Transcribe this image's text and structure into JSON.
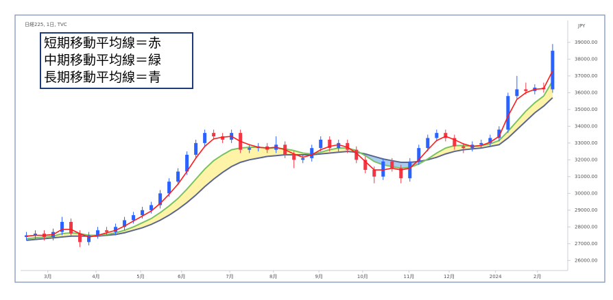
{
  "header": {
    "symbol": "日経225, 1日, TVC",
    "currency": "JPY"
  },
  "legend_box": {
    "lines": [
      "短期移動平均線＝赤",
      "中期移動平均線＝緑",
      "長期移動平均線＝青"
    ]
  },
  "chart_data": {
    "type": "candlestick",
    "up_color": "#2962ff",
    "down_color": "#f23645",
    "band_colors": {
      "above": "#fff3a8",
      "below": "#a9cdf0"
    },
    "xlim": [
      -0.5,
      59.7
    ],
    "xticks": [
      {
        "value": 2.4,
        "label": "3月"
      },
      {
        "value": 7.8,
        "label": "4月"
      },
      {
        "value": 12.8,
        "label": "5月"
      },
      {
        "value": 17.4,
        "label": "6月"
      },
      {
        "value": 22.8,
        "label": "7月"
      },
      {
        "value": 27.7,
        "label": "8月"
      },
      {
        "value": 32.8,
        "label": "9月"
      },
      {
        "value": 37.7,
        "label": "10月"
      },
      {
        "value": 42.9,
        "label": "11月"
      },
      {
        "value": 47.4,
        "label": "12月"
      },
      {
        "value": 52.6,
        "label": "2024"
      },
      {
        "value": 57.3,
        "label": "2月"
      }
    ],
    "ylim": [
      25400,
      40300
    ],
    "yticks": [
      {
        "value": 26000,
        "label": "26000.00"
      },
      {
        "value": 27000,
        "label": "27000.00"
      },
      {
        "value": 28000,
        "label": "28000.00"
      },
      {
        "value": 29000,
        "label": "29000.00"
      },
      {
        "value": 30000,
        "label": "30000.00"
      },
      {
        "value": 31000,
        "label": "31000.00"
      },
      {
        "value": 32000,
        "label": "32000.00"
      },
      {
        "value": 33000,
        "label": "33000.00"
      },
      {
        "value": 34000,
        "label": "34000.00"
      },
      {
        "value": 35000,
        "label": "35000.00"
      },
      {
        "value": 36000,
        "label": "36000.00"
      },
      {
        "value": 37000,
        "label": "37000.00"
      },
      {
        "value": 38000,
        "label": "38000.00"
      },
      {
        "value": 39000,
        "label": "39000.00"
      }
    ],
    "grid": false,
    "candles": {
      "open": [
        27400,
        27500,
        27600,
        27400,
        27700,
        28300,
        27600,
        27100,
        27500,
        27800,
        27700,
        28000,
        28400,
        28700,
        29000,
        29300,
        30000,
        30700,
        31300,
        32300,
        33000,
        33600,
        33400,
        33200,
        33600,
        32600,
        32700,
        32800,
        32600,
        32900,
        32300,
        32000,
        32100,
        32700,
        33200,
        32700,
        33000,
        32600,
        32000,
        31400,
        31000,
        31900,
        31500,
        30900,
        31900,
        32700,
        33300,
        33600,
        33300,
        32800,
        32700,
        32900,
        33000,
        33300,
        33800,
        35800,
        36200,
        36100,
        36300,
        36200
      ],
      "high": [
        27700,
        27800,
        27800,
        27900,
        28600,
        28500,
        27800,
        27700,
        28000,
        28000,
        28200,
        28600,
        28900,
        29200,
        29500,
        30200,
        30900,
        31500,
        32500,
        33200,
        33800,
        33800,
        33600,
        33800,
        33800,
        32900,
        33000,
        33000,
        33400,
        33100,
        32500,
        32300,
        32900,
        33400,
        33400,
        33200,
        33200,
        32800,
        32200,
        31600,
        32100,
        32100,
        31700,
        32100,
        32900,
        33500,
        33800,
        33800,
        33500,
        33000,
        33100,
        33200,
        33500,
        34000,
        36000,
        37000,
        36600,
        36500,
        36600,
        38900
      ],
      "low": [
        27200,
        27300,
        27200,
        27200,
        27500,
        27400,
        26800,
        26900,
        27300,
        27500,
        27500,
        27800,
        28200,
        28500,
        28800,
        29100,
        29800,
        30500,
        31100,
        32100,
        32800,
        33200,
        33000,
        33000,
        32400,
        32400,
        32500,
        32400,
        32400,
        32100,
        31500,
        31800,
        31900,
        32500,
        32500,
        32500,
        32400,
        31800,
        31200,
        30600,
        30800,
        31300,
        30600,
        30700,
        31700,
        32500,
        33100,
        33100,
        32600,
        32400,
        32500,
        32700,
        32800,
        33100,
        33600,
        35600,
        35900,
        35900,
        36000,
        36000
      ],
      "close": [
        27500,
        27600,
        27400,
        27700,
        28300,
        27600,
        27100,
        27500,
        27800,
        27700,
        28000,
        28400,
        28700,
        29000,
        29300,
        30000,
        30700,
        31300,
        32300,
        33000,
        33600,
        33400,
        33200,
        33600,
        32600,
        32700,
        32800,
        32600,
        32900,
        32300,
        32000,
        32100,
        32700,
        33200,
        32700,
        33000,
        32600,
        32000,
        31400,
        31000,
        31900,
        31500,
        30900,
        31900,
        32700,
        33300,
        33600,
        33300,
        32800,
        32700,
        32900,
        33000,
        33300,
        33800,
        35800,
        36200,
        36100,
        36300,
        36200,
        38500
      ]
    },
    "ma_series": [
      {
        "color": "#ff1a1a",
        "values": [
          27450,
          27500,
          27500,
          27550,
          27850,
          27850,
          27600,
          27400,
          27500,
          27650,
          27800,
          28050,
          28350,
          28650,
          28950,
          29400,
          29950,
          30550,
          31300,
          32100,
          32800,
          33250,
          33350,
          33400,
          33100,
          32900,
          32750,
          32700,
          32750,
          32600,
          32350,
          32150,
          32300,
          32600,
          32800,
          32900,
          32750,
          32400,
          31900,
          31400,
          31400,
          31500,
          31400,
          31500,
          32000,
          32600,
          33150,
          33400,
          33200,
          32950,
          32800,
          32850,
          33050,
          33400,
          34600,
          35600,
          36000,
          36200,
          36250,
          37300
        ]
      },
      {
        "color": "#78c25f",
        "values": [
          27300,
          27350,
          27400,
          27450,
          27600,
          27650,
          27600,
          27500,
          27500,
          27550,
          27650,
          27800,
          28000,
          28250,
          28500,
          28850,
          29250,
          29700,
          30250,
          30850,
          31450,
          31950,
          32300,
          32600,
          32700,
          32750,
          32750,
          32700,
          32700,
          32650,
          32550,
          32400,
          32350,
          32450,
          32600,
          32700,
          32700,
          32550,
          32250,
          31900,
          31700,
          31600,
          31500,
          31550,
          31750,
          32050,
          32400,
          32700,
          32850,
          32850,
          32800,
          32850,
          32950,
          33150,
          33700,
          34300,
          34900,
          35400,
          35800,
          36700
        ]
      },
      {
        "color": "#5a6690",
        "values": [
          27200,
          27250,
          27300,
          27350,
          27400,
          27450,
          27450,
          27450,
          27450,
          27500,
          27550,
          27650,
          27800,
          27950,
          28150,
          28400,
          28700,
          29050,
          29450,
          29900,
          30400,
          30850,
          31250,
          31600,
          31850,
          32000,
          32100,
          32200,
          32250,
          32300,
          32300,
          32300,
          32300,
          32350,
          32400,
          32450,
          32500,
          32450,
          32350,
          32200,
          32050,
          31950,
          31850,
          31850,
          31900,
          32000,
          32150,
          32350,
          32500,
          32600,
          32650,
          32700,
          32800,
          32900,
          33300,
          33800,
          34300,
          34800,
          35200,
          35700
        ]
      }
    ]
  }
}
